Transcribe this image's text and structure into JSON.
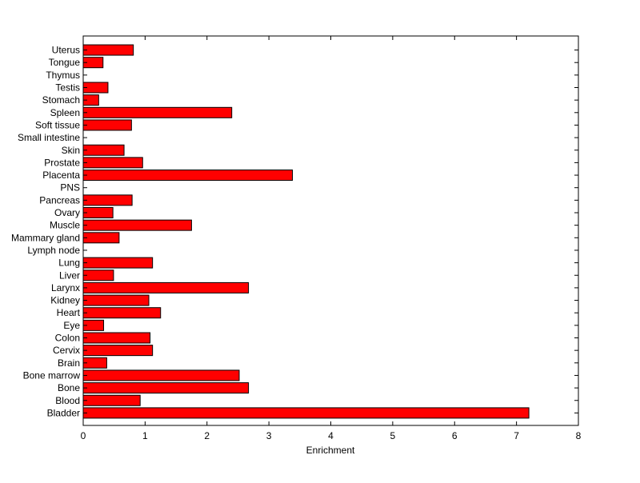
{
  "chart_data": {
    "type": "bar",
    "orientation": "horizontal",
    "title": "",
    "xlabel": "Enrichment",
    "ylabel": "",
    "xlim": [
      0,
      8
    ],
    "xticks": [
      0,
      1,
      2,
      3,
      4,
      5,
      6,
      7,
      8
    ],
    "grid": false,
    "bar_color": "#ff0000",
    "edge_color": "#000000",
    "categories": [
      "Bladder",
      "Blood",
      "Bone",
      "Bone marrow",
      "Brain",
      "Cervix",
      "Colon",
      "Eye",
      "Heart",
      "Kidney",
      "Larynx",
      "Liver",
      "Lung",
      "Lymph node",
      "Mammary gland",
      "Muscle",
      "Ovary",
      "Pancreas",
      "PNS",
      "Placenta",
      "Prostate",
      "Skin",
      "Small intestine",
      "Soft tissue",
      "Spleen",
      "Stomach",
      "Testis",
      "Thymus",
      "Tongue",
      "Uterus"
    ],
    "values": [
      7.2,
      0.92,
      2.67,
      2.52,
      0.38,
      1.12,
      1.08,
      0.33,
      1.25,
      1.06,
      2.67,
      0.49,
      1.12,
      0,
      0.58,
      1.75,
      0.48,
      0.79,
      0,
      3.38,
      0.96,
      0.66,
      0,
      0.78,
      2.4,
      0.25,
      0.4,
      0,
      0.32,
      0.81
    ]
  }
}
